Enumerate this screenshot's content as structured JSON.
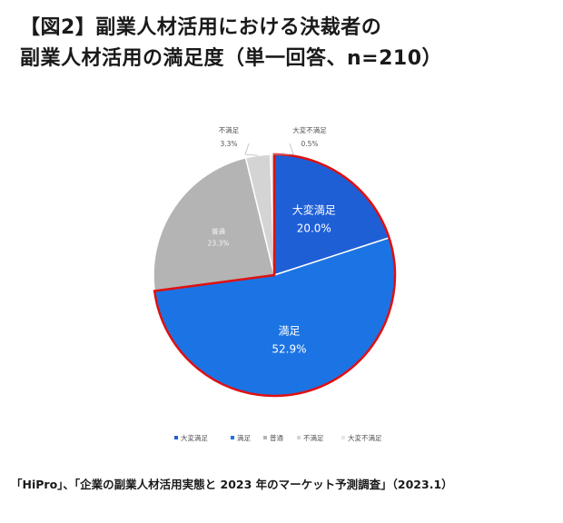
{
  "title": {
    "line1": "【図2】副業人材活用における決裁者の",
    "line2": "副業人材活用の満足度（単一回答、n=210）"
  },
  "source": "「HiPro」、「企業の副業人材活用実態と 2023 年のマーケット予測調査」（2023.1）",
  "chart_data": {
    "type": "pie",
    "categories": [
      "大変満足",
      "満足",
      "普通",
      "不満足",
      "大変不満足"
    ],
    "values": [
      20.0,
      52.9,
      23.3,
      3.3,
      0.5
    ],
    "value_labels": [
      "20.0%",
      "52.9%",
      "23.3%",
      "3.3%",
      "0.5%"
    ],
    "colors": [
      "#1f5fd6",
      "#1c74e4",
      "#b4b4b4",
      "#d4d4d4",
      "#e6e6e6"
    ],
    "highlight_color": "#e01010",
    "highlight_categories": [
      "大変満足",
      "満足"
    ],
    "legend_placement": "bottom"
  }
}
